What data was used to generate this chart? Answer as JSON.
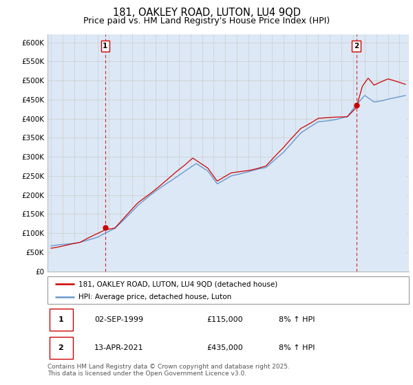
{
  "title": "181, OAKLEY ROAD, LUTON, LU4 9QD",
  "subtitle": "Price paid vs. HM Land Registry's House Price Index (HPI)",
  "ylabel_ticks": [
    "£0",
    "£50K",
    "£100K",
    "£150K",
    "£200K",
    "£250K",
    "£300K",
    "£350K",
    "£400K",
    "£450K",
    "£500K",
    "£550K",
    "£600K"
  ],
  "ylim": [
    0,
    620000
  ],
  "xlim_start": 1994.7,
  "xlim_end": 2025.8,
  "purchase1_date": 1999.67,
  "purchase1_price": 115000,
  "purchase1_label": "1",
  "purchase2_date": 2021.28,
  "purchase2_price": 435000,
  "purchase2_label": "2",
  "legend_house": "181, OAKLEY ROAD, LUTON, LU4 9QD (detached house)",
  "legend_hpi": "HPI: Average price, detached house, Luton",
  "table_rows": [
    {
      "num": "1",
      "date": "02-SEP-1999",
      "price": "£115,000",
      "change": "8% ↑ HPI"
    },
    {
      "num": "2",
      "date": "13-APR-2021",
      "price": "£435,000",
      "change": "8% ↑ HPI"
    }
  ],
  "footer": "Contains HM Land Registry data © Crown copyright and database right 2025.\nThis data is licensed under the Open Government Licence v3.0.",
  "line_color_house": "#cc0000",
  "line_color_hpi": "#6699cc",
  "fill_color_hpi": "#dce8f5",
  "vline_color": "#cc0000",
  "background_color": "#ffffff",
  "grid_color": "#cccccc",
  "title_fontsize": 10.5,
  "subtitle_fontsize": 9,
  "tick_fontsize": 7.5
}
